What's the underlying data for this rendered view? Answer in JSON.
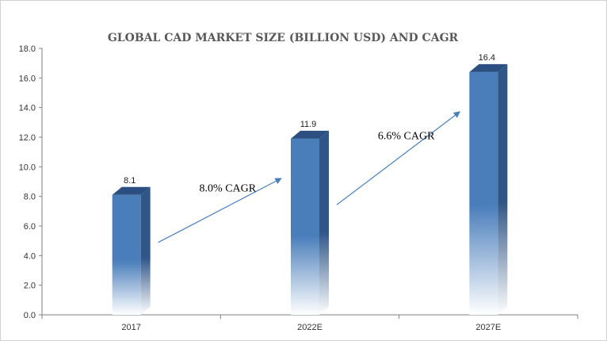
{
  "chart_data": {
    "type": "bar",
    "title": "GLOBAL CAD MARKET SIZE  (BILLION USD) AND CAGR",
    "categories": [
      "2017",
      "2022E",
      "2027E"
    ],
    "values": [
      8.1,
      11.9,
      16.4
    ],
    "value_labels": [
      "8.1",
      "11.9",
      "16.4"
    ],
    "ylim": [
      0,
      18
    ],
    "yticks": [
      "0.0",
      "2.0",
      "4.0",
      "6.0",
      "8.0",
      "10.0",
      "12.0",
      "14.0",
      "16.0",
      "18.0"
    ],
    "grid": false,
    "legend": "none",
    "annotations": [
      {
        "text": "8.0% CAGR",
        "from": "2017",
        "to": "2022E"
      },
      {
        "text": "6.6% CAGR",
        "from": "2022E",
        "to": "2027E"
      }
    ],
    "colors": {
      "bar": "#4a7ebb",
      "bar_side": "#2f5687",
      "arrow": "#4a7ebb"
    }
  }
}
